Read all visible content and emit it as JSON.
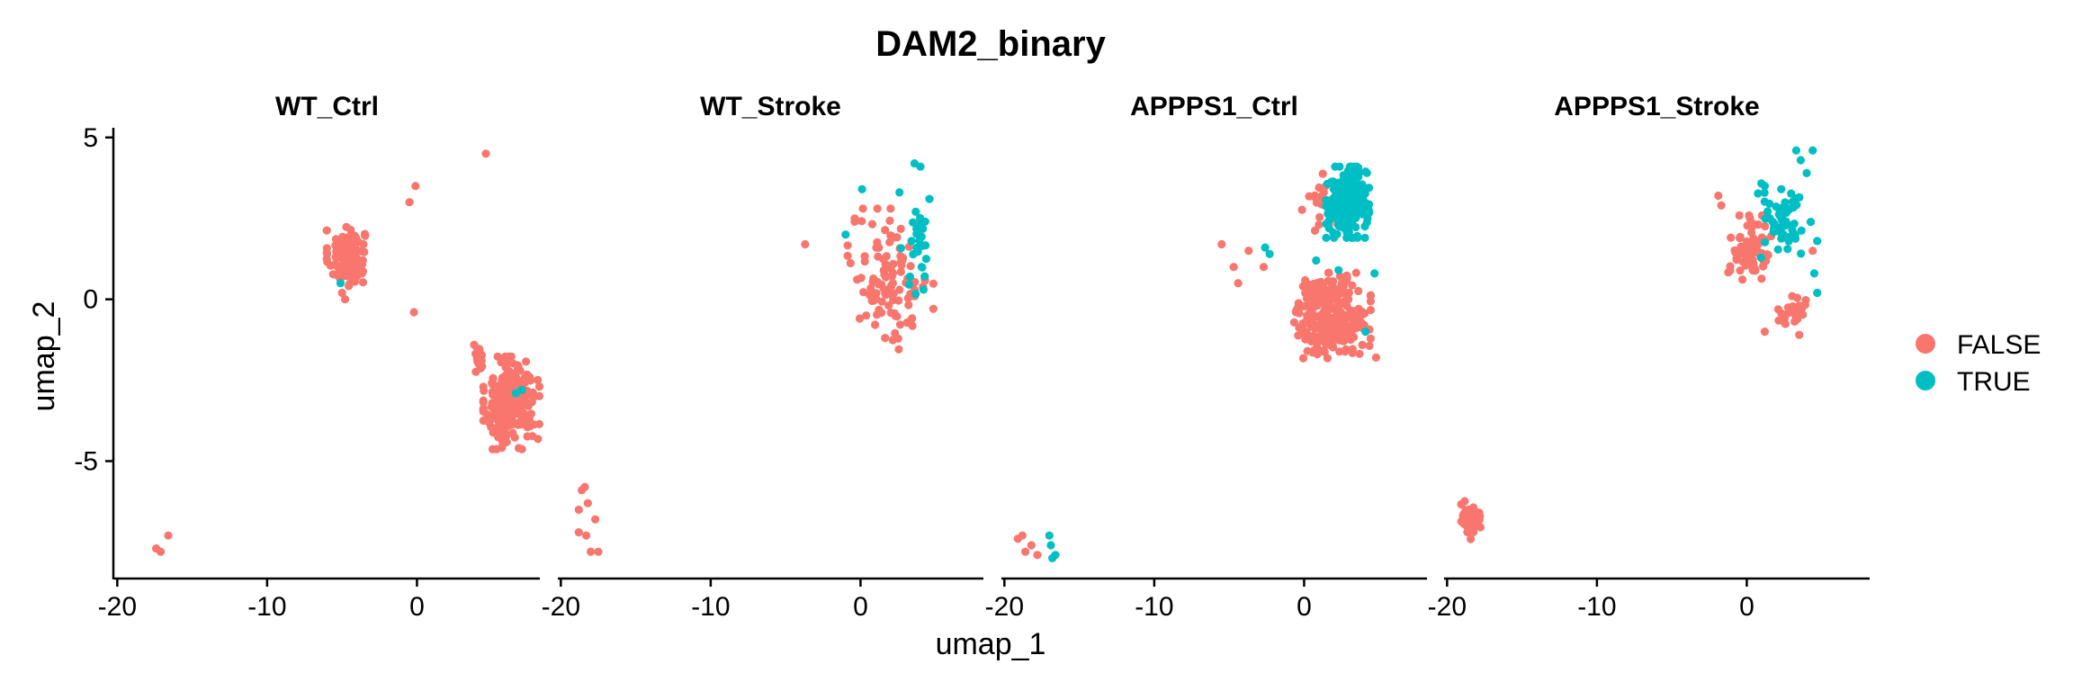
{
  "chart_data": {
    "type": "scatter",
    "title": "DAM2_binary",
    "xlabel": "umap_1",
    "ylabel": "umap_2",
    "xlim": [
      -20.2,
      8.2
    ],
    "ylim": [
      -8.6,
      5.3
    ],
    "x_ticks": [
      -20,
      -10,
      0
    ],
    "x_tick_labels": [
      "-20",
      "-10",
      "0"
    ],
    "y_ticks": [
      5,
      0,
      -5
    ],
    "y_tick_labels": [
      "5",
      "0",
      "-5"
    ],
    "legend_position": "right",
    "legend": [
      {
        "label": "FALSE",
        "color": "#F8766D"
      },
      {
        "label": "TRUE",
        "color": "#00BFC4"
      }
    ],
    "panels": [
      {
        "name": "WT_Ctrl",
        "groups": [
          {
            "category": "FALSE",
            "clusters": [
              {
                "cx": -4.7,
                "cy": 1.3,
                "sx": 1.2,
                "sy": 0.85,
                "n": 140
              },
              {
                "cx": 6.3,
                "cy": -3.2,
                "sx": 1.7,
                "sy": 1.3,
                "n": 260
              },
              {
                "cx": 4.2,
                "cy": -1.8,
                "sx": 0.35,
                "sy": 0.5,
                "n": 20
              }
            ],
            "points": [
              [
                -17.4,
                -7.7
              ],
              [
                -17.1,
                -7.8
              ],
              [
                -16.6,
                -7.3
              ],
              [
                -0.1,
                3.5
              ],
              [
                -0.5,
                3.0
              ],
              [
                4.6,
                4.5
              ],
              [
                -0.2,
                -0.4
              ],
              [
                -5.0,
                0.2
              ],
              [
                -4.8,
                0.0
              ]
            ]
          },
          {
            "category": "TRUE",
            "clusters": [],
            "points": [
              [
                -5.1,
                0.5
              ],
              [
                6.6,
                -2.9
              ],
              [
                7.0,
                -2.8
              ]
            ]
          }
        ]
      },
      {
        "name": "WT_Stroke",
        "groups": [
          {
            "category": "FALSE",
            "clusters": [
              {
                "cx": 2.0,
                "cy": 0.6,
                "sx": 2.6,
                "sy": 2.0,
                "n": 110
              }
            ],
            "points": [
              [
                -18.6,
                -5.9
              ],
              [
                -18.4,
                -5.8
              ],
              [
                -18.8,
                -6.5
              ],
              [
                -18.2,
                -6.3
              ],
              [
                -17.7,
                -6.8
              ],
              [
                -18.8,
                -7.2
              ],
              [
                -18.0,
                -7.8
              ],
              [
                -17.5,
                -7.8
              ],
              [
                -18.3,
                -7.3
              ],
              [
                -3.7,
                1.7
              ]
            ]
          },
          {
            "category": "TRUE",
            "clusters": [
              {
                "cx": 3.8,
                "cy": 1.6,
                "sx": 1.0,
                "sy": 1.4,
                "n": 24
              }
            ],
            "points": [
              [
                3.6,
                4.2
              ],
              [
                4.0,
                4.1
              ],
              [
                0.1,
                3.4
              ],
              [
                2.6,
                3.3
              ],
              [
                4.6,
                3.1
              ],
              [
                -1.0,
                2.0
              ],
              [
                3.3,
                0.7
              ],
              [
                4.2,
                0.3
              ]
            ]
          }
        ]
      },
      {
        "name": "APPPS1_Ctrl",
        "groups": [
          {
            "category": "FALSE",
            "clusters": [
              {
                "cx": 1.8,
                "cy": -0.5,
                "sx": 2.4,
                "sy": 1.2,
                "n": 260
              },
              {
                "cx": 1.4,
                "cy": 3.0,
                "sx": 1.4,
                "sy": 0.8,
                "n": 30
              }
            ],
            "points": [
              [
                -19.1,
                -7.4
              ],
              [
                -18.8,
                -7.3
              ],
              [
                -18.6,
                -7.8
              ],
              [
                -18.2,
                -7.6
              ],
              [
                -17.8,
                -7.9
              ],
              [
                -5.5,
                1.7
              ],
              [
                -3.7,
                1.5
              ],
              [
                -4.7,
                1.0
              ],
              [
                -4.4,
                0.5
              ],
              [
                -2.7,
                1.0
              ],
              [
                4.8,
                -1.8
              ]
            ]
          },
          {
            "category": "TRUE",
            "clusters": [
              {
                "cx": 2.9,
                "cy": 3.0,
                "sx": 1.3,
                "sy": 1.0,
                "n": 260
              }
            ],
            "points": [
              [
                -2.6,
                1.6
              ],
              [
                -2.3,
                1.4
              ],
              [
                0.8,
                1.2
              ],
              [
                2.3,
                0.9
              ],
              [
                4.7,
                0.8
              ],
              [
                4.1,
                -1.0
              ],
              [
                -17.0,
                -7.3
              ],
              [
                -16.9,
                -7.6
              ],
              [
                -16.6,
                -7.9
              ],
              [
                -16.8,
                -8.0
              ]
            ]
          }
        ]
      },
      {
        "name": "APPPS1_Stroke",
        "groups": [
          {
            "category": "FALSE",
            "clusters": [
              {
                "cx": -18.4,
                "cy": -6.8,
                "sx": 0.6,
                "sy": 0.55,
                "n": 55
              },
              {
                "cx": 0.3,
                "cy": 1.6,
                "sx": 1.4,
                "sy": 0.9,
                "n": 75
              },
              {
                "cx": 3.1,
                "cy": -0.4,
                "sx": 1.1,
                "sy": 0.45,
                "n": 25
              }
            ],
            "points": [
              [
                -1.9,
                3.2
              ],
              [
                -1.7,
                2.9
              ],
              [
                4.4,
                1.5
              ],
              [
                1.2,
                -1.0
              ],
              [
                3.5,
                -1.1
              ]
            ]
          },
          {
            "category": "TRUE",
            "clusters": [
              {
                "cx": 2.4,
                "cy": 2.4,
                "sx": 1.7,
                "sy": 1.1,
                "n": 55
              }
            ],
            "points": [
              [
                3.3,
                4.6
              ],
              [
                4.4,
                4.6
              ],
              [
                3.6,
                4.3
              ],
              [
                4.0,
                3.9
              ],
              [
                1.2,
                3.5
              ],
              [
                2.3,
                3.4
              ],
              [
                4.7,
                1.8
              ],
              [
                4.5,
                0.8
              ],
              [
                4.7,
                0.2
              ]
            ]
          }
        ]
      }
    ]
  }
}
